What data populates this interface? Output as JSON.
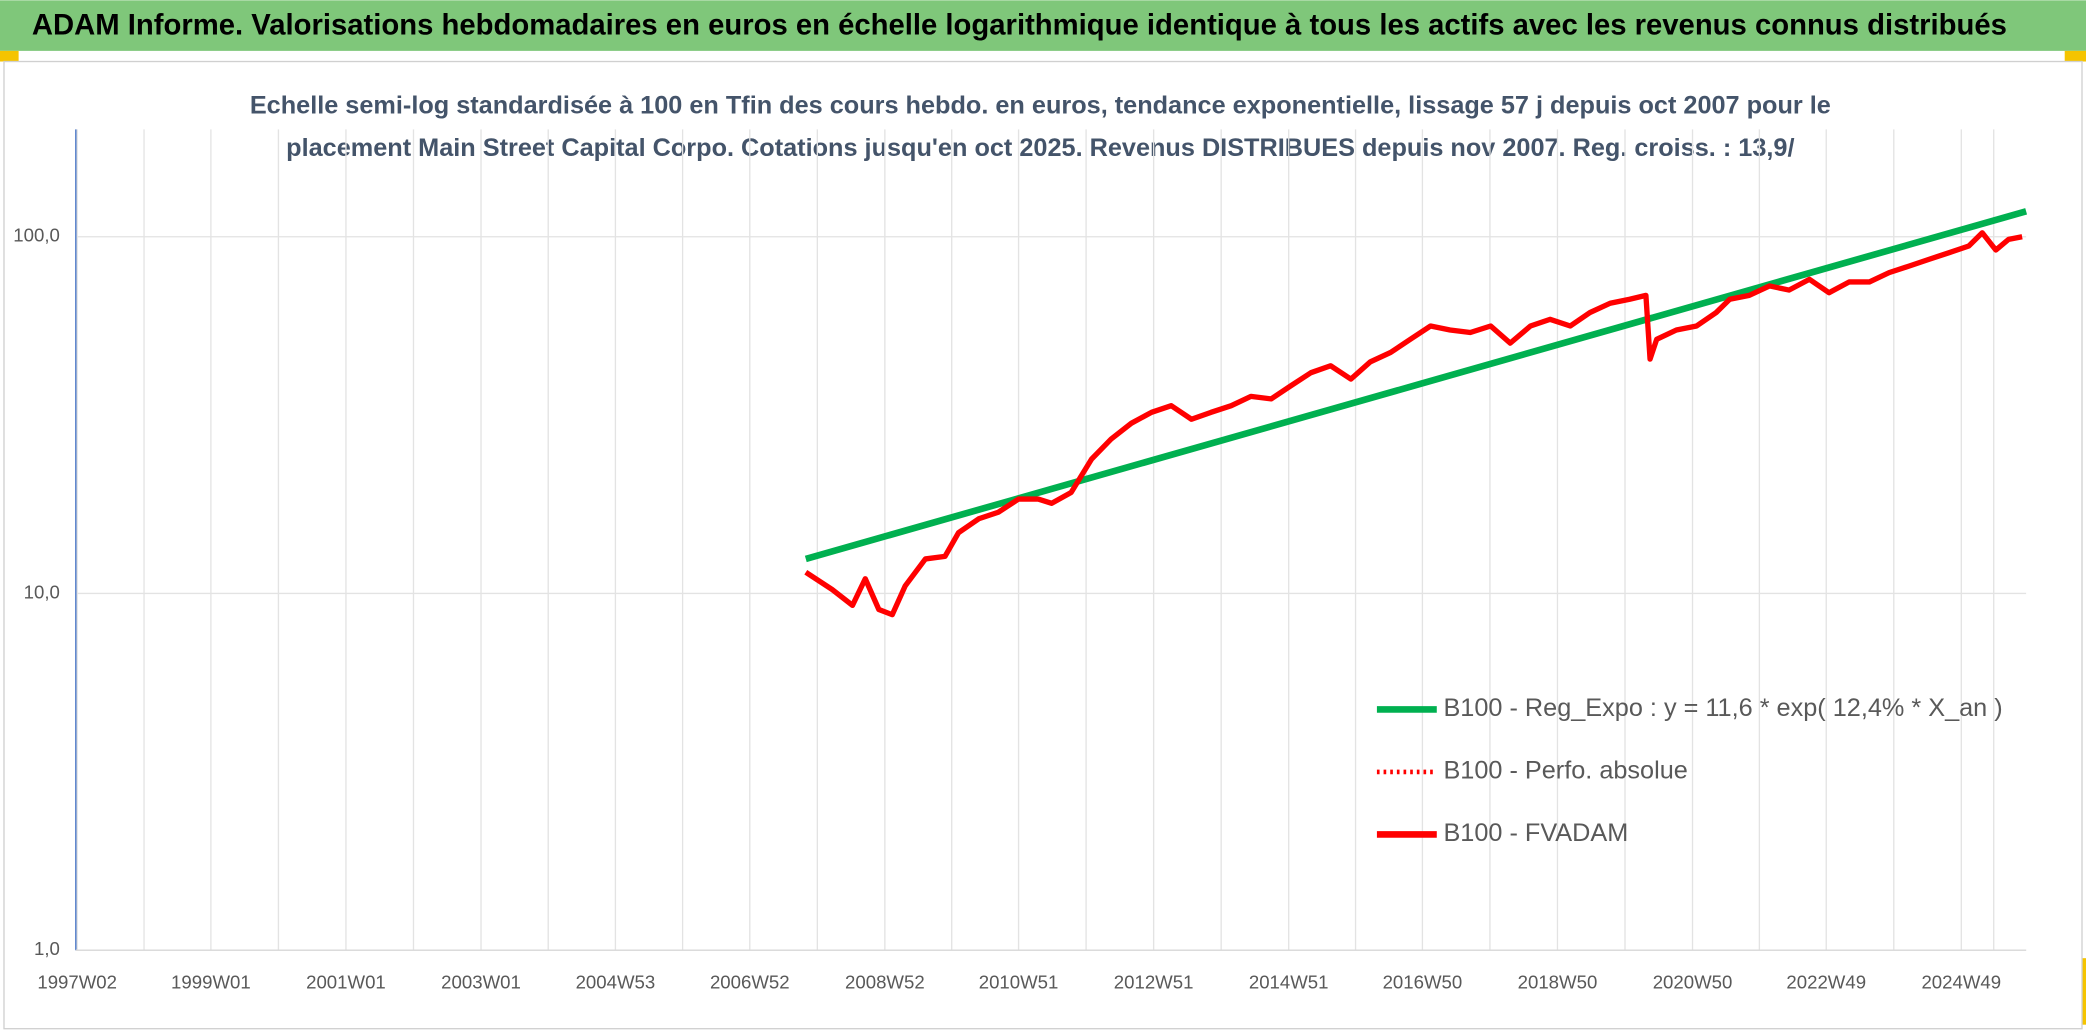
{
  "header": {
    "title": "ADAM Informe. Valorisations hebdomadaires en euros en échelle logarithmique identique à tous les actifs avec les revenus connus distribués"
  },
  "chart_data": {
    "type": "line",
    "title": [
      "Echelle semi-log standardisée à 100 en Tfin des cours hebdo. en euros, tendance exponentielle, lissage 57 j depuis oct 2007 pour le",
      "placement Main Street Capital Corpo. Cotations jusqu'en oct 2025. Revenus DISTRIBUES depuis nov 2007. Reg. croiss. : 13,9/"
    ],
    "log_y": true,
    "grid": true,
    "legend": "lower right",
    "xlim": [
      1997.0,
      2025.88
    ],
    "xticks": [
      {
        "value": 1997.02,
        "label": "1997W02"
      },
      {
        "value": 1999.0,
        "label": "1999W01"
      },
      {
        "value": 2001.0,
        "label": "2001W01"
      },
      {
        "value": 2003.0,
        "label": "2003W01"
      },
      {
        "value": 2004.99,
        "label": "2004W53"
      },
      {
        "value": 2006.98,
        "label": "2006W52"
      },
      {
        "value": 2008.98,
        "label": "2008W52"
      },
      {
        "value": 2010.96,
        "label": "2010W51"
      },
      {
        "value": 2012.96,
        "label": "2012W51"
      },
      {
        "value": 2014.96,
        "label": "2014W51"
      },
      {
        "value": 2016.94,
        "label": "2016W50"
      },
      {
        "value": 2018.94,
        "label": "2018W50"
      },
      {
        "value": 2020.94,
        "label": "2020W50"
      },
      {
        "value": 2022.92,
        "label": "2022W49"
      },
      {
        "value": 2024.92,
        "label": "2024W49"
      }
    ],
    "ylim": [
      1,
      200
    ],
    "yticks": [
      {
        "value": 1,
        "label": "1,0"
      },
      {
        "value": 10,
        "label": "10,0"
      },
      {
        "value": 100,
        "label": "100,0"
      }
    ],
    "series": [
      {
        "name": "B100 - Reg_Expo : y = 11,6 * exp( 12,4% *  X_an )",
        "color": "#00b050",
        "line_style": "solid",
        "x": [
          2007.81,
          2025.88
        ],
        "values": [
          12.5,
          117.8
        ]
      },
      {
        "name": "B100 - Perfo. absolue",
        "color": "#ff0000",
        "line_style": "dotted",
        "x": [],
        "values": []
      },
      {
        "name": "B100 - FVADAM",
        "color": "#ff0000",
        "line_style": "solid",
        "x": [
          2007.81,
          2008.2,
          2008.5,
          2008.69,
          2008.89,
          2009.09,
          2009.28,
          2009.58,
          2009.87,
          2010.07,
          2010.37,
          2010.66,
          2010.96,
          2011.25,
          2011.45,
          2011.74,
          2012.04,
          2012.33,
          2012.63,
          2012.93,
          2013.22,
          2013.52,
          2013.81,
          2014.11,
          2014.4,
          2014.7,
          2014.99,
          2015.29,
          2015.58,
          2015.88,
          2016.17,
          2016.47,
          2016.76,
          2017.06,
          2017.35,
          2017.65,
          2017.95,
          2018.24,
          2018.54,
          2018.83,
          2019.13,
          2019.42,
          2019.72,
          2020.01,
          2020.25,
          2020.31,
          2020.41,
          2020.7,
          2021.0,
          2021.29,
          2021.49,
          2021.78,
          2022.08,
          2022.37,
          2022.67,
          2022.96,
          2023.26,
          2023.56,
          2023.85,
          2024.15,
          2024.44,
          2024.74,
          2025.03,
          2025.23,
          2025.43,
          2025.62,
          2025.82
        ],
        "values": [
          11.47,
          10.26,
          9.26,
          11.0,
          9.02,
          8.72,
          10.5,
          12.5,
          12.7,
          14.8,
          16.2,
          16.9,
          18.4,
          18.4,
          17.9,
          19.2,
          23.8,
          27.1,
          30.0,
          32.2,
          33.6,
          30.8,
          32.2,
          33.6,
          35.7,
          35.1,
          38.2,
          41.6,
          43.5,
          39.9,
          44.6,
          47.4,
          51.6,
          56.2,
          54.8,
          53.9,
          56.2,
          50.3,
          56.2,
          58.7,
          56.2,
          61.3,
          65.1,
          66.8,
          68.5,
          45.4,
          51.6,
          54.8,
          56.2,
          61.3,
          66.8,
          68.5,
          72.8,
          70.9,
          76.0,
          69.7,
          74.7,
          74.7,
          79.3,
          82.8,
          86.4,
          90.2,
          94.2,
          102.6,
          91.8,
          98.3,
          100
        ]
      }
    ]
  }
}
